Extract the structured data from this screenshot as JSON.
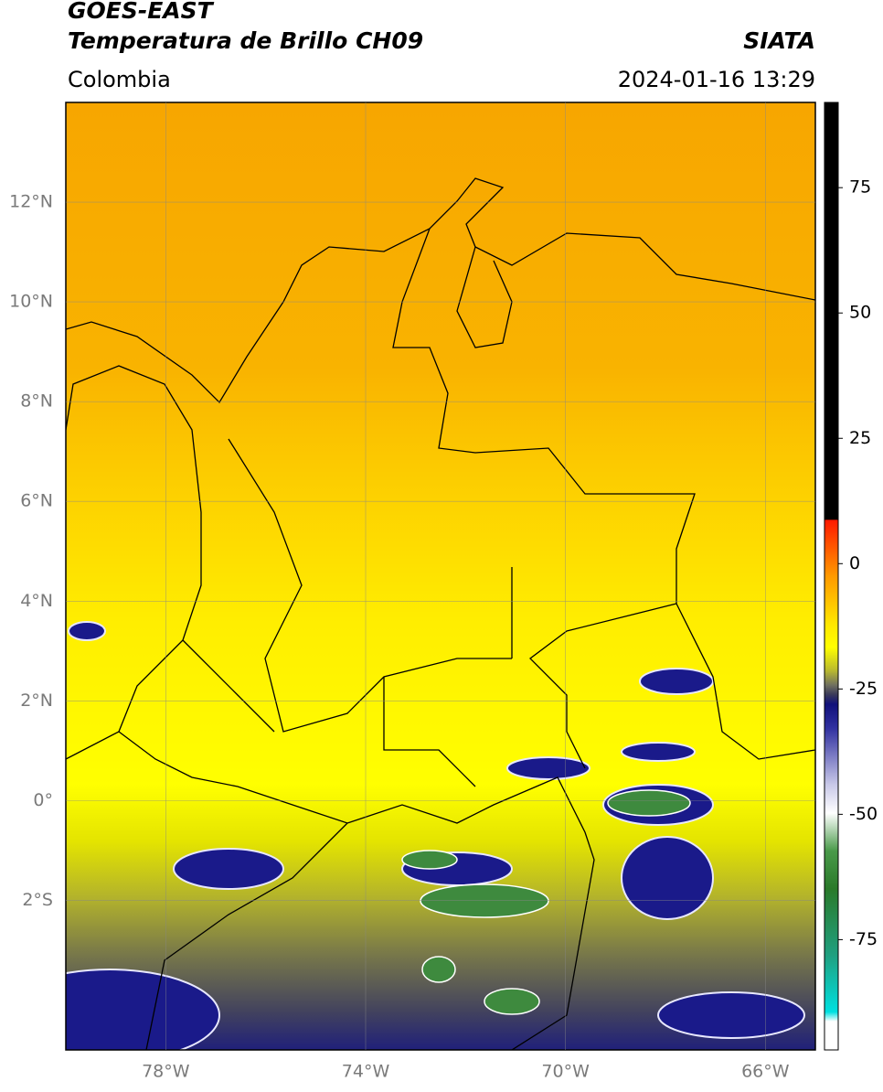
{
  "header": {
    "title": "GOES-EAST",
    "subtitle": "Temperatura de Brillo CH09",
    "region": "Colombia",
    "source": "SIATA",
    "timestamp": "2024-01-16 13:29"
  },
  "chart_data": {
    "type": "map",
    "xlim": [
      -80,
      -65
    ],
    "ylim": [
      -5,
      14
    ],
    "xticks": [
      {
        "value": -78,
        "label": "78°W"
      },
      {
        "value": -74,
        "label": "74°W"
      },
      {
        "value": -70,
        "label": "70°W"
      },
      {
        "value": -66,
        "label": "66°W"
      }
    ],
    "yticks": [
      {
        "value": 12,
        "label": "12°N"
      },
      {
        "value": 10,
        "label": "10°N"
      },
      {
        "value": 8,
        "label": "8°N"
      },
      {
        "value": 6,
        "label": "6°N"
      },
      {
        "value": 4,
        "label": "4°N"
      },
      {
        "value": 2,
        "label": "2°N"
      },
      {
        "value": 0,
        "label": "0°"
      },
      {
        "value": -2,
        "label": "2°S"
      }
    ],
    "grid": true,
    "colorbar": {
      "lim": [
        -97,
        92
      ],
      "ticks": [
        75,
        50,
        25,
        0,
        -25,
        -50,
        -75
      ]
    }
  }
}
